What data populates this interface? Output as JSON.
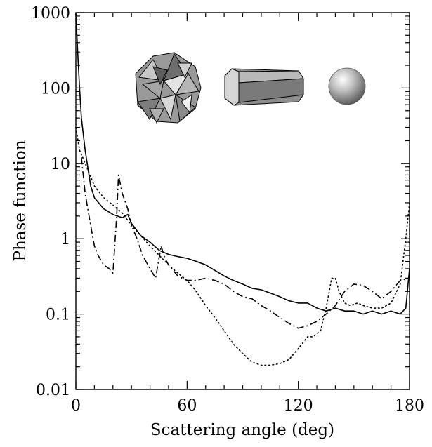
{
  "chart_data": {
    "type": "line",
    "xlabel": "Scattering angle (deg)",
    "ylabel": "Phase function",
    "xlim": [
      0,
      180
    ],
    "ylim": [
      0.01,
      1000
    ],
    "yscale": "log",
    "x_ticks": [
      0,
      60,
      120,
      180
    ],
    "x_tick_labels": [
      "0",
      "60",
      "120",
      "180"
    ],
    "y_ticks": [
      0.01,
      0.1,
      1,
      10,
      100,
      1000
    ],
    "y_tick_labels": [
      "0.01",
      "0.1",
      "1",
      "10",
      "100",
      "1000"
    ],
    "grid": false,
    "legend": "none",
    "insets": [
      {
        "icon": "aggregate-crystal-icon",
        "series_style": "solid"
      },
      {
        "icon": "hexagonal-column-icon",
        "series_style": "dashdot"
      },
      {
        "icon": "sphere-icon",
        "series_style": "dotted"
      }
    ],
    "series": [
      {
        "style": "solid",
        "x": [
          0,
          1,
          2,
          3,
          5,
          8,
          10,
          15,
          20,
          25,
          28,
          30,
          35,
          40,
          45,
          50,
          55,
          60,
          65,
          70,
          75,
          80,
          85,
          90,
          95,
          100,
          105,
          110,
          115,
          120,
          125,
          130,
          135,
          140,
          145,
          150,
          155,
          160,
          165,
          170,
          175,
          178,
          180
        ],
        "y": [
          1000,
          300,
          100,
          40,
          15,
          5,
          3.5,
          2.5,
          2.1,
          1.9,
          2.1,
          1.6,
          1.1,
          0.9,
          0.7,
          0.62,
          0.58,
          0.55,
          0.5,
          0.45,
          0.38,
          0.32,
          0.28,
          0.25,
          0.22,
          0.21,
          0.19,
          0.17,
          0.15,
          0.14,
          0.14,
          0.12,
          0.11,
          0.12,
          0.11,
          0.11,
          0.1,
          0.11,
          0.1,
          0.11,
          0.1,
          0.12,
          0.4
        ]
      },
      {
        "style": "dashdot",
        "x": [
          3,
          5,
          8,
          10,
          12,
          15,
          18,
          20,
          22,
          23,
          25,
          28,
          30,
          33,
          36,
          40,
          43,
          46,
          48,
          50,
          55,
          60,
          65,
          70,
          75,
          80,
          85,
          90,
          95,
          100,
          105,
          110,
          115,
          120,
          125,
          130,
          135,
          140,
          145,
          150,
          155,
          160,
          165,
          170,
          175,
          180
        ],
        "y": [
          12,
          4,
          1.5,
          0.8,
          0.6,
          0.45,
          0.4,
          0.35,
          2,
          7,
          4,
          2.5,
          1.5,
          1,
          0.6,
          0.4,
          0.3,
          0.8,
          0.55,
          0.45,
          0.32,
          0.28,
          0.28,
          0.3,
          0.28,
          0.25,
          0.2,
          0.17,
          0.16,
          0.13,
          0.11,
          0.09,
          0.075,
          0.065,
          0.07,
          0.08,
          0.1,
          0.13,
          0.2,
          0.25,
          0.24,
          0.2,
          0.16,
          0.2,
          0.28,
          0.3
        ]
      },
      {
        "style": "dotted",
        "x": [
          0,
          2,
          5,
          10,
          15,
          20,
          25,
          30,
          35,
          40,
          45,
          50,
          55,
          60,
          65,
          70,
          75,
          80,
          85,
          90,
          95,
          100,
          105,
          110,
          115,
          120,
          125,
          128,
          132,
          135,
          138,
          140,
          142,
          145,
          148,
          152,
          155,
          160,
          165,
          170,
          175,
          178,
          180
        ],
        "y": [
          30,
          15,
          10,
          5,
          3.5,
          2.8,
          2.2,
          1.5,
          1.1,
          0.8,
          0.6,
          0.45,
          0.35,
          0.28,
          0.2,
          0.13,
          0.09,
          0.06,
          0.04,
          0.03,
          0.023,
          0.021,
          0.021,
          0.022,
          0.025,
          0.035,
          0.05,
          0.05,
          0.06,
          0.12,
          0.3,
          0.3,
          0.2,
          0.14,
          0.13,
          0.14,
          0.13,
          0.12,
          0.12,
          0.14,
          0.25,
          1,
          3
        ]
      }
    ]
  }
}
